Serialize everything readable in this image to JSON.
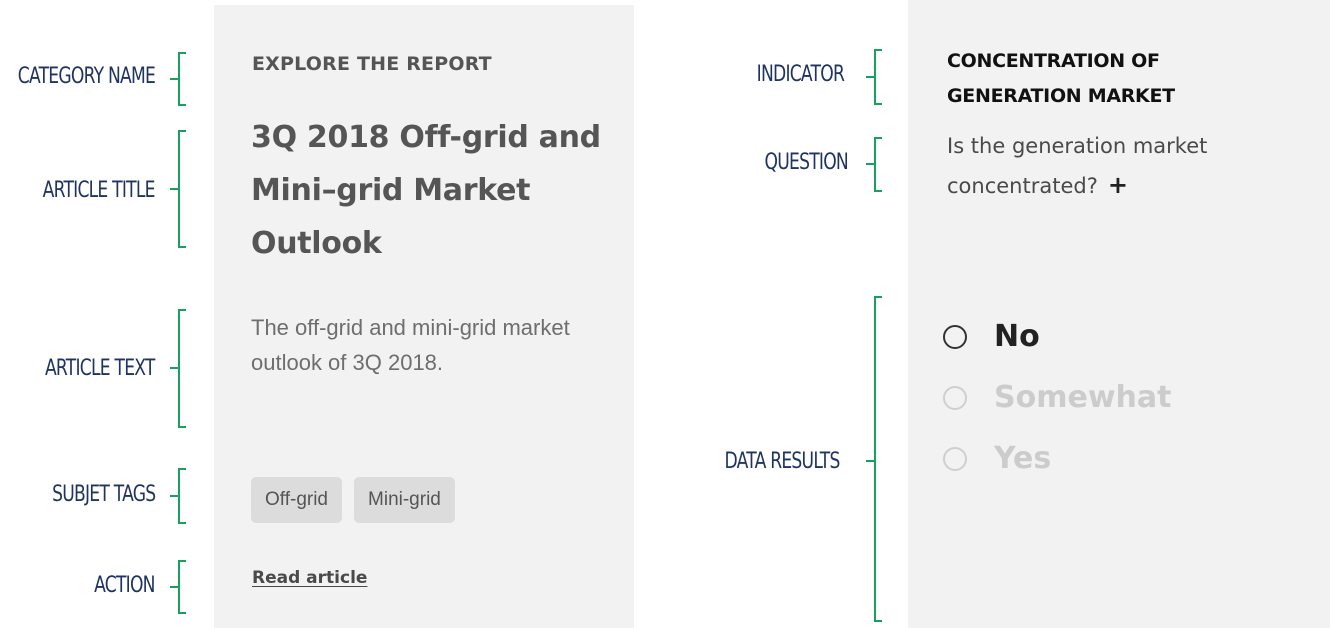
{
  "annotations": {
    "category_name": "CATEGORY NAME",
    "article_title": "ARTICLE TITLE",
    "article_text": "ARTICLE TEXT",
    "subject_tags": "SUBJET TAGS",
    "action": "ACTION",
    "indicator": "INDICATOR",
    "question": "QUESTION",
    "data_results": "DATA RESULTS"
  },
  "article_card": {
    "category": "EXPLORE THE REPORT",
    "title": "3Q 2018 Off-grid and Mini–grid Market Outlook",
    "text": "The off-grid and mini-grid market outlook of 3Q 2018.",
    "tags": [
      "Off-grid",
      "Mini-grid"
    ],
    "action": "Read article"
  },
  "indicator_card": {
    "indicator": "CONCENTRATION OF GENERATION MARKET",
    "question": "Is the generation market concentrated?",
    "expand_symbol": "+",
    "options": [
      {
        "label": "No",
        "selected": true
      },
      {
        "label": "Somewhat",
        "selected": false
      },
      {
        "label": "Yes",
        "selected": false
      }
    ]
  },
  "colors": {
    "label_text": "#1f3461",
    "bracket": "#18a05e",
    "card_background": "#f2f2f2"
  }
}
